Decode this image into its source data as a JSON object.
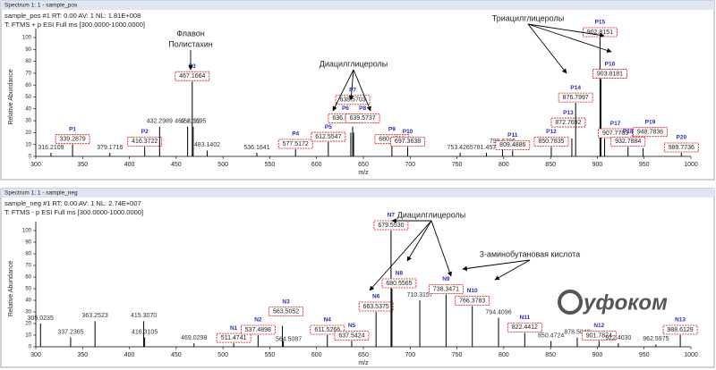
{
  "chart_data": [
    {
      "type": "stick",
      "window_title": "Spectrum 1: 1 - sample_pos",
      "info": [
        "sample_pos #1 RT: 0.00 AV: 1 NL: 1.81E+008",
        "T: FTMS + p ESI Full ms [300.0000-1000.0000]"
      ],
      "xlabel": "m/z",
      "ylabel": "Relative Abundance",
      "color": "#000000",
      "xlim": [
        300,
        1000
      ],
      "xticks": [
        300,
        350,
        400,
        450,
        500,
        550,
        600,
        650,
        700,
        750,
        800,
        850,
        900,
        950,
        1000
      ],
      "ylim": [
        0,
        100
      ],
      "yticks": [
        0,
        10,
        20,
        30,
        40,
        50,
        60,
        70,
        80,
        90,
        100
      ],
      "x": [
        316.2109,
        339.2879,
        379.1716,
        416.3722,
        432.2989,
        462.2112,
        467.1664,
        468.1695,
        483.1402,
        536.1641,
        577.5172,
        612.5547,
        636.5549,
        638.5703,
        639.5737,
        680.4786,
        697.3638,
        753.4265,
        781.4576,
        798.6796,
        809.4886,
        850.7835,
        872.7692,
        876.7997,
        902.8151,
        903.8181,
        907.7703,
        932.7884,
        948.7836,
        989.7736
      ],
      "values": [
        3,
        10,
        3,
        8,
        25,
        25,
        63,
        25,
        5,
        3,
        6,
        12,
        20,
        25,
        20,
        10,
        8,
        3,
        3,
        8,
        5,
        8,
        15,
        45,
        100,
        65,
        15,
        8,
        7,
        3
      ],
      "peak_labels": [
        "316.2109",
        "339.2879",
        "379.1716",
        "416.3722",
        "432.2989",
        "462.2112",
        "467.1664",
        "468.1695",
        "483.1402",
        "536.1641",
        "577.5172",
        "612.5547",
        "636.5549",
        "638.5703",
        "639.5737",
        "680.4786",
        "697.3638",
        "753.4265",
        "781.4576",
        "798.6796",
        "809.4886",
        "850.7835",
        "872.7692",
        "876.7997",
        "902.8151",
        "903.8181",
        "907.7703",
        "932.7884",
        "948.7836",
        "989.7736"
      ],
      "peak_ids": [
        null,
        "P1",
        null,
        "P2",
        null,
        null,
        "P3",
        null,
        null,
        null,
        "P4",
        "P5",
        "P6",
        "P7",
        "P8",
        "P9",
        "P10",
        null,
        null,
        null,
        "P11",
        "P12",
        "P13",
        "P14",
        "P15",
        "P16",
        "P17",
        "P18",
        "P19",
        "P20"
      ],
      "annotations": [
        "Флавон",
        "Полистахин",
        "Диацилглицеролы",
        "Триацилглицеролы"
      ]
    },
    {
      "type": "stick",
      "window_title": "Spectrum 1: 1 - sample_neg",
      "info": [
        "sample_neg #1 RT: 0.00 AV: 1 NL: 2.74E+007",
        "T: FTMS - p ESI Full ms [300.0000-1000.0000]"
      ],
      "xlabel": "m/z",
      "ylabel": "Relative Abundance",
      "color": "#000000",
      "xlim": [
        300,
        1000
      ],
      "xticks": [
        300,
        350,
        400,
        450,
        500,
        550,
        600,
        650,
        700,
        750,
        800,
        850,
        900,
        950,
        1000
      ],
      "ylim": [
        0,
        100
      ],
      "yticks": [
        0,
        10,
        20,
        30,
        40,
        50,
        60,
        70,
        80,
        90,
        100
      ],
      "x": [
        305.0235,
        337.2365,
        363.2523,
        415.307,
        416.3105,
        469.0298,
        511.4741,
        537.4898,
        563.5052,
        564.5087,
        611.5266,
        637.5424,
        663.5375,
        679.553,
        680.5565,
        710.3157,
        738.3471,
        766.3783,
        794.4096,
        822.4412,
        850.4724,
        878.504,
        901.7874,
        922.403,
        962.5975,
        988.6129
      ],
      "values": [
        20,
        8,
        22,
        22,
        8,
        3,
        3,
        10,
        18,
        5,
        10,
        5,
        30,
        100,
        50,
        40,
        45,
        35,
        25,
        12,
        5,
        8,
        5,
        3,
        2,
        10
      ],
      "peak_labels": [
        "305.0235",
        "337.2365",
        "363.2523",
        "415.3070",
        "416.3105",
        "469.0298",
        "511.4741",
        "537.4898",
        "563.5052",
        "564.5087",
        "611.5266",
        "637.5424",
        "663.5375",
        "679.5530",
        "680.5565",
        "710.3157",
        "738.3471",
        "766.3783",
        "794.4096",
        "822.4412",
        "850.4724",
        "878.5040",
        "901.7874",
        "922.4030",
        "962.5975",
        "988.6129"
      ],
      "peak_ids": [
        null,
        null,
        null,
        null,
        null,
        null,
        "N1",
        "N2",
        "N3",
        null,
        "N4",
        "N5",
        "N6",
        "N7",
        "N8",
        null,
        "N9",
        "N10",
        null,
        "N11",
        null,
        null,
        "N12",
        null,
        null,
        "N13"
      ],
      "annotations": [
        "Диацилглицеролы",
        "3-аминобутановая кислота"
      ],
      "logo": "уфоком"
    }
  ]
}
